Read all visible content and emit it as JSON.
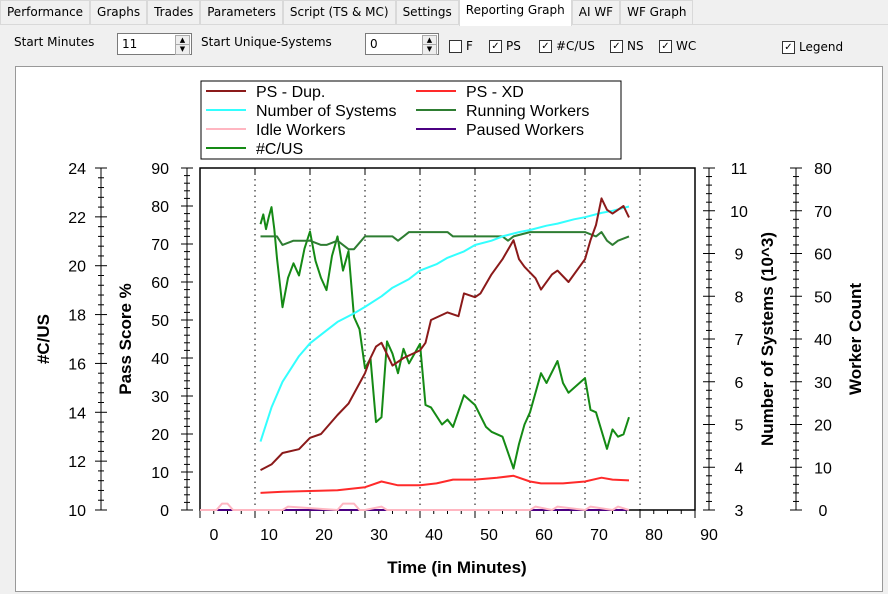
{
  "tabs": [
    "Performance",
    "Graphs",
    "Trades",
    "Parameters",
    "Script (TS & MC)",
    "Settings",
    "Reporting Graph",
    "AI WF",
    "WF Graph"
  ],
  "active_tab": "Reporting Graph",
  "controls": {
    "start_minutes_label": "Start Minutes",
    "start_minutes_value": "11",
    "start_unique_label": "Start Unique-Systems",
    "start_unique_value": "0",
    "checkboxes": [
      {
        "label": "F",
        "checked": false
      },
      {
        "label": "PS",
        "checked": true
      },
      {
        "label": "#C/US",
        "checked": true
      },
      {
        "label": "NS",
        "checked": true
      },
      {
        "label": "WC",
        "checked": true
      }
    ],
    "legend_checkbox": {
      "label": "Legend",
      "checked": true
    }
  },
  "chart_data": {
    "type": "line",
    "xlabel": "Time (in Minutes)",
    "xlim": [
      0,
      90
    ],
    "xticks": [
      0,
      10,
      20,
      30,
      40,
      50,
      60,
      70,
      80,
      90
    ],
    "axes": [
      {
        "id": "cus",
        "label": "#C/US",
        "range": [
          10,
          24
        ],
        "ticks": [
          10,
          12,
          14,
          16,
          18,
          20,
          22,
          24
        ]
      },
      {
        "id": "ps",
        "label": "Pass Score %",
        "range": [
          0,
          90
        ],
        "ticks": [
          0,
          10,
          20,
          30,
          40,
          50,
          60,
          70,
          80,
          90
        ]
      },
      {
        "id": "ns",
        "label": "Number of Systems (10^3)",
        "range": [
          3,
          11
        ],
        "ticks": [
          3,
          4,
          5,
          6,
          7,
          8,
          9,
          10,
          11
        ]
      },
      {
        "id": "wc",
        "label": "Worker Count",
        "range": [
          0,
          80
        ],
        "ticks": [
          0,
          10,
          20,
          30,
          40,
          50,
          60,
          70,
          80
        ]
      }
    ],
    "legend": [
      "PS - Dup.",
      "PS - XD",
      "Number of Systems",
      "Running Workers",
      "Idle Workers",
      "Paused Workers",
      "#C/US"
    ],
    "series": [
      {
        "name": "PS - Dup.",
        "axis": "ps",
        "color": "#8b1a1a",
        "x": [
          11,
          13,
          15,
          18,
          20,
          22,
          25,
          27,
          30,
          31,
          32,
          33,
          35,
          37,
          40,
          41,
          42,
          45,
          47,
          48,
          50,
          51,
          53,
          55,
          57,
          58,
          59,
          61,
          62,
          64,
          65,
          67,
          70,
          71,
          72,
          73,
          74,
          75,
          76,
          77,
          78
        ],
        "y": [
          10.5,
          12,
          15,
          16,
          19,
          20,
          25,
          28,
          36,
          40,
          43,
          44,
          38,
          40,
          42,
          44,
          50,
          52,
          51,
          57,
          56,
          57,
          62,
          66,
          71,
          66,
          64,
          61,
          58,
          62,
          63,
          60,
          66,
          71,
          75,
          82,
          79,
          78,
          79,
          80,
          77
        ]
      },
      {
        "name": "PS - XD",
        "axis": "ps",
        "color": "#ff2a2a",
        "x": [
          11,
          15,
          20,
          25,
          30,
          33,
          36,
          40,
          43,
          46,
          50,
          54,
          57,
          60,
          62,
          66,
          70,
          73,
          75,
          78
        ],
        "y": [
          4.5,
          4.8,
          5,
          5.2,
          6,
          7.5,
          6.5,
          6.5,
          7,
          8,
          8,
          8.5,
          9,
          7.5,
          7,
          7,
          7.5,
          8.5,
          8,
          7.8
        ]
      },
      {
        "name": "Number of Systems",
        "axis": "ns",
        "color": "#33ffff",
        "x": [
          11,
          13,
          15,
          18,
          20,
          23,
          25,
          28,
          30,
          33,
          35,
          38,
          40,
          43,
          45,
          48,
          50,
          53,
          55,
          58,
          60,
          63,
          65,
          68,
          70,
          73,
          75,
          78
        ],
        "y": [
          4.6,
          5.4,
          6.0,
          6.6,
          6.9,
          7.2,
          7.4,
          7.6,
          7.75,
          8.0,
          8.2,
          8.4,
          8.6,
          8.75,
          8.9,
          9.05,
          9.2,
          9.3,
          9.4,
          9.5,
          9.55,
          9.65,
          9.7,
          9.8,
          9.85,
          9.95,
          10.0,
          10.1
        ]
      },
      {
        "name": "Running Workers",
        "axis": "wc",
        "color": "#2e7d32",
        "x": [
          11,
          14,
          15,
          17,
          20,
          22,
          23,
          25,
          27,
          28,
          30,
          35,
          36,
          37,
          38,
          45,
          46,
          50,
          55,
          56,
          57,
          60,
          70,
          72,
          73,
          74,
          75,
          76,
          78
        ],
        "y": [
          64,
          64,
          62,
          63,
          63,
          62,
          62,
          63,
          61,
          61,
          64,
          64,
          63,
          64,
          65,
          65,
          64,
          64,
          64,
          63,
          64,
          65,
          65,
          64,
          65,
          63,
          62,
          63,
          64
        ]
      },
      {
        "name": "Idle Workers",
        "axis": "wc",
        "color": "#ffb6c1",
        "x": [
          0,
          3,
          4,
          5,
          6,
          11,
          15,
          16,
          25,
          26,
          28,
          29,
          30,
          33,
          34,
          40,
          60,
          61,
          64,
          65,
          70,
          71,
          75,
          76,
          78
        ],
        "y": [
          0,
          0,
          1.5,
          1.5,
          0,
          0,
          0,
          0.8,
          0,
          1.5,
          1.5,
          0,
          0,
          0.8,
          0,
          0,
          0,
          0.8,
          0,
          0.8,
          0,
          0.8,
          0,
          0.8,
          0
        ]
      },
      {
        "name": "Paused Workers",
        "axis": "wc",
        "color": "#4b0082",
        "x": [
          0,
          78
        ],
        "y": [
          0,
          0
        ]
      },
      {
        "name": "#C/US",
        "axis": "cus",
        "color": "#158a15",
        "x": [
          11,
          11.5,
          12,
          12.5,
          13,
          13.5,
          14,
          15,
          16,
          17,
          18,
          19,
          20,
          21,
          22,
          23,
          24,
          25,
          26,
          27,
          28,
          29,
          30,
          31,
          32,
          33,
          34,
          35,
          36,
          37,
          38,
          40,
          41,
          42,
          44,
          45,
          46,
          48,
          50,
          52,
          53,
          55,
          57,
          58,
          59,
          60,
          62,
          63,
          65,
          66,
          67,
          70,
          71,
          72,
          74,
          75,
          76,
          77,
          78
        ],
        "y": [
          21.7,
          22.1,
          21.5,
          22.0,
          22.4,
          21.5,
          20.3,
          18.3,
          19.5,
          20.1,
          19.6,
          20.7,
          21.4,
          20.2,
          19.5,
          19.0,
          20.4,
          21.2,
          19.8,
          20.6,
          17.9,
          17.4,
          15.8,
          16.2,
          13.6,
          13.8,
          16.9,
          16.4,
          15.6,
          16.6,
          16.0,
          16.8,
          14.3,
          14.2,
          13.5,
          13.7,
          13.4,
          14.7,
          14.3,
          13.4,
          13.2,
          13.0,
          11.7,
          12.7,
          13.5,
          14.0,
          15.6,
          15.2,
          16.1,
          15.2,
          14.8,
          15.4,
          14.1,
          14.0,
          12.5,
          13.3,
          13.0,
          13.1,
          13.8
        ]
      }
    ]
  }
}
